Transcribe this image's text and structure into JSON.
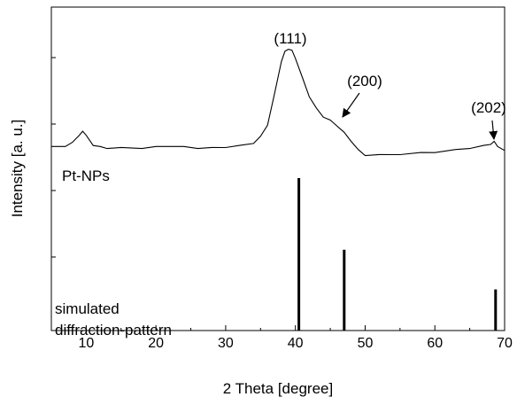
{
  "chart_data": {
    "type": "line",
    "title": "",
    "xlabel": "2 Theta [degree]",
    "ylabel": "Intensity [a. u.]",
    "xlim": [
      5,
      70
    ],
    "x_ticks": [
      10,
      20,
      30,
      40,
      50,
      60,
      70
    ],
    "y_ticks_labeled": false,
    "grid": false,
    "series": [
      {
        "name": "Pt-NPs",
        "x": [
          5,
          7,
          8,
          9,
          9.5,
          10,
          10.5,
          11,
          12,
          13,
          15,
          18,
          20,
          22,
          24,
          26,
          28,
          30,
          32,
          34,
          35,
          36,
          37,
          38,
          38.5,
          39,
          39.5,
          40,
          41,
          42,
          43,
          44,
          45,
          46,
          47,
          48,
          49,
          50,
          52,
          55,
          58,
          60,
          63,
          65,
          67,
          68,
          68.5,
          69,
          70
        ],
        "y": [
          0.1,
          0.11,
          0.14,
          0.22,
          0.25,
          0.22,
          0.16,
          0.12,
          0.1,
          0.09,
          0.09,
          0.09,
          0.1,
          0.11,
          0.1,
          0.09,
          0.09,
          0.1,
          0.11,
          0.14,
          0.2,
          0.32,
          0.62,
          0.95,
          1.04,
          1.07,
          1.05,
          0.98,
          0.78,
          0.6,
          0.48,
          0.4,
          0.36,
          0.31,
          0.24,
          0.16,
          0.07,
          0.02,
          0.02,
          0.03,
          0.04,
          0.05,
          0.07,
          0.09,
          0.11,
          0.13,
          0.15,
          0.11,
          0.06
        ]
      },
      {
        "name": "simulated diffraction-pattern",
        "type": "stick",
        "x": [
          40.5,
          47.0,
          68.7
        ],
        "y": [
          100,
          53,
          27
        ]
      }
    ],
    "annotations": [
      {
        "text": "(111)",
        "x": 39.3
      },
      {
        "text": "(200)",
        "x": 47.0,
        "arrow": true
      },
      {
        "text": "(202)",
        "x": 68.5,
        "arrow": true
      }
    ],
    "labels": {
      "pt_nps": "Pt-NPs",
      "simulated_line1": "simulated",
      "simulated_line2": "diffraction-pattern"
    }
  }
}
